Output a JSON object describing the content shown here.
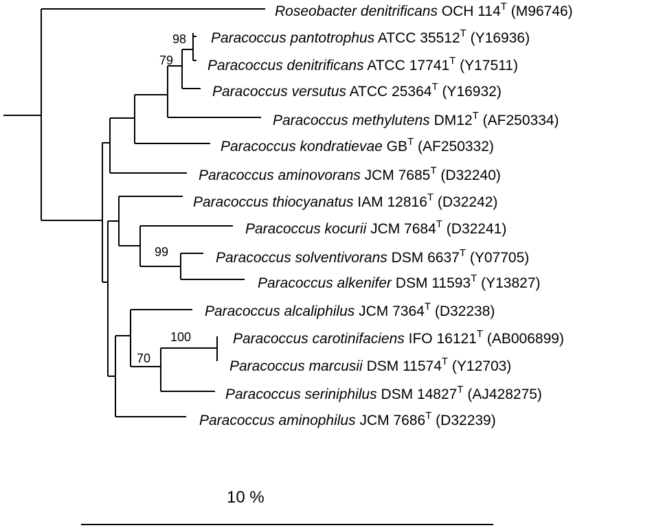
{
  "taxa": [
    {
      "species": "Roseobacter denitrificans",
      "strain": " OCH 114",
      "type": "T",
      "accession": " (M96746)"
    },
    {
      "species": "Paracoccus pantotrophus",
      "strain": " ATCC 35512",
      "type": "T",
      "accession": " (Y16936)"
    },
    {
      "species": "Paracoccus denitrificans",
      "strain": " ATCC 17741",
      "type": "T",
      "accession": " (Y17511)"
    },
    {
      "species": "Paracoccus versutus",
      "strain": " ATCC 25364",
      "type": "T",
      "accession": " (Y16932)"
    },
    {
      "species": "Paracoccus methylutens",
      "strain": " DM12",
      "type": "T",
      "accession": " (AF250334)"
    },
    {
      "species": "Paracoccus kondratievae",
      "strain": " GB",
      "type": "T",
      "accession": " (AF250332)"
    },
    {
      "species": "Paracoccus aminovorans",
      "strain": " JCM 7685",
      "type": "T",
      "accession": " (D32240)"
    },
    {
      "species": "Paracoccus thiocyanatus",
      "strain": " IAM 12816",
      "type": "T",
      "accession": " (D32242)"
    },
    {
      "species": "Paracoccus kocurii",
      "strain": " JCM 7684",
      "type": "T",
      "accession": " (D32241)"
    },
    {
      "species": "Paracoccus solventivorans",
      "strain": " DSM 6637",
      "type": "T",
      "accession": " (Y07705)"
    },
    {
      "species": "Paracoccus alkenifer",
      "strain": " DSM 11593",
      "type": "T",
      "accession": " (Y13827)"
    },
    {
      "species": "Paracoccus alcaliphilus",
      "strain": " JCM 7364",
      "type": "T",
      "accession": " (D32238)"
    },
    {
      "species": "Paracoccus carotinifaciens",
      "strain": " IFO 16121",
      "type": "T",
      "accession": " (AB006899)"
    },
    {
      "species": "Paracoccus marcusii",
      "strain": " DSM 11574",
      "type": "T",
      "accession": " (Y12703)"
    },
    {
      "species": "Paracoccus seriniphilus",
      "strain": " DSM 14827",
      "type": "T",
      "accession": " (AJ428275)"
    },
    {
      "species": "Paracoccus aminophilus",
      "strain": " JCM 7686",
      "type": "T",
      "accession": " (D32239)"
    }
  ],
  "bootstrap": [
    "98",
    "79",
    "99",
    "100",
    "70"
  ],
  "scale": {
    "label": "10 %"
  }
}
